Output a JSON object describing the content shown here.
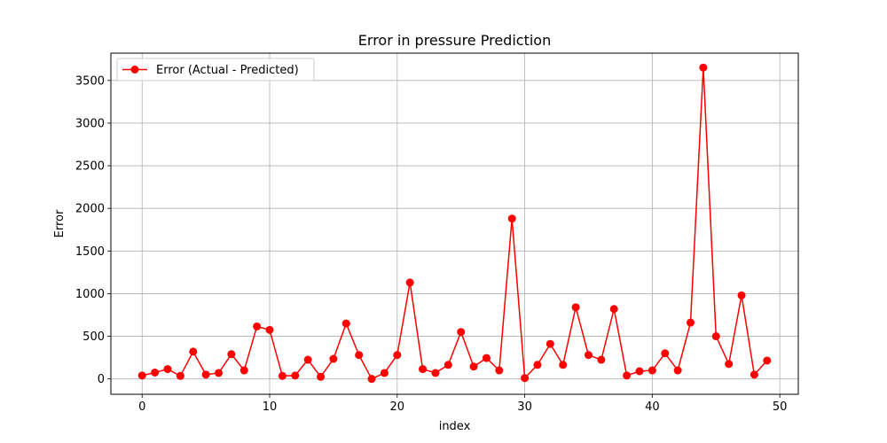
{
  "chart_data": {
    "type": "line",
    "title": "Error in pressure Prediction",
    "xlabel": "index",
    "ylabel": "Error",
    "xlim": [
      -2.45,
      51.45
    ],
    "ylim": [
      -180,
      3820
    ],
    "xticks": [
      0,
      10,
      20,
      30,
      40,
      50
    ],
    "yticks": [
      0,
      500,
      1000,
      1500,
      2000,
      2500,
      3000,
      3500
    ],
    "grid": true,
    "legend_position": "top-left",
    "series": [
      {
        "name": "Error (Actual - Predicted)",
        "color": "#ff0000",
        "marker": "circle",
        "x": [
          0,
          1,
          2,
          3,
          4,
          5,
          6,
          7,
          8,
          9,
          10,
          11,
          12,
          13,
          14,
          15,
          16,
          17,
          18,
          19,
          20,
          21,
          22,
          23,
          24,
          25,
          26,
          27,
          28,
          29,
          30,
          31,
          32,
          33,
          34,
          35,
          36,
          37,
          38,
          39,
          40,
          41,
          42,
          43,
          44,
          45,
          46,
          47,
          48,
          49
        ],
        "values": [
          40,
          75,
          115,
          35,
          320,
          50,
          70,
          290,
          100,
          615,
          575,
          35,
          40,
          225,
          25,
          235,
          650,
          280,
          0,
          70,
          280,
          1130,
          115,
          70,
          165,
          550,
          145,
          245,
          100,
          1880,
          10,
          165,
          410,
          165,
          840,
          280,
          225,
          820,
          40,
          90,
          100,
          300,
          100,
          660,
          3650,
          500,
          175,
          980,
          50,
          215
        ]
      }
    ]
  }
}
